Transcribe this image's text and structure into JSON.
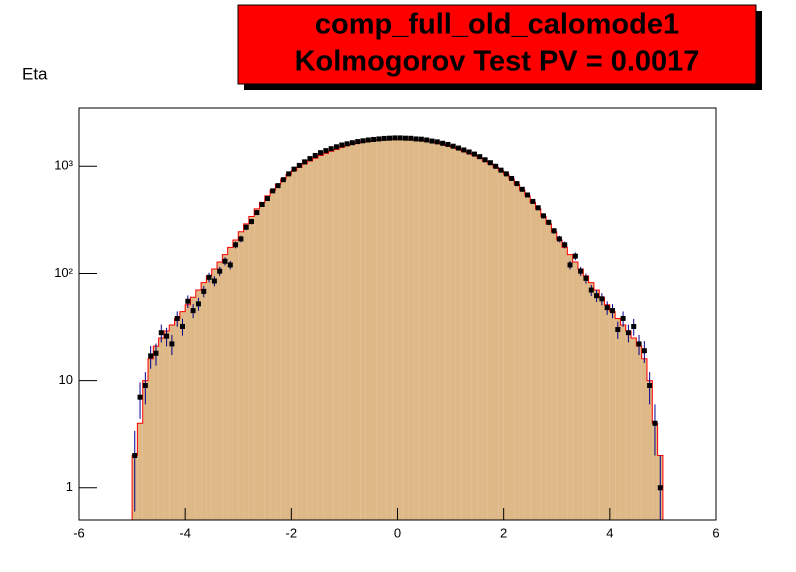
{
  "chart_data": {
    "type": "histogram",
    "title": "comp_full_old_calomode1",
    "subtitle": "Kolmogorov Test PV = 0.0017",
    "ylabel": "Eta",
    "log_y": true,
    "xlim": [
      -6,
      6
    ],
    "xticks": [
      -6,
      -4,
      -2,
      0,
      2,
      4,
      6
    ],
    "ylim": [
      0.5,
      3500
    ],
    "yticks": [
      1,
      10,
      {
        "value": 100,
        "label": "10²"
      },
      {
        "value": 1000,
        "label": "10³"
      }
    ],
    "bins": [
      -5,
      -4.9,
      -4.8,
      -4.7,
      -4.6,
      -4.5,
      -4.4,
      -4.3,
      -4.2,
      -4.1,
      -4,
      -3.9,
      -3.8,
      -3.7,
      -3.6,
      -3.5,
      -3.4,
      -3.3,
      -3.2,
      -3.1,
      -3,
      -2.9,
      -2.8,
      -2.7,
      -2.6,
      -2.5,
      -2.4,
      -2.3,
      -2.2,
      -2.1,
      -2,
      -1.9,
      -1.8,
      -1.7,
      -1.6,
      -1.5,
      -1.4,
      -1.3,
      -1.2,
      -1.1,
      -1,
      -0.9,
      -0.8,
      -0.7,
      -0.6,
      -0.5,
      -0.4,
      -0.3,
      -0.2,
      -0.1,
      0,
      0.1,
      0.2,
      0.3,
      0.4,
      0.5,
      0.6,
      0.7,
      0.8,
      0.9,
      1,
      1.1,
      1.2,
      1.3,
      1.4,
      1.5,
      1.6,
      1.7,
      1.8,
      1.9,
      2,
      2.1,
      2.2,
      2.3,
      2.4,
      2.5,
      2.6,
      2.7,
      2.8,
      2.9,
      3,
      3.1,
      3.2,
      3.3,
      3.4,
      3.5,
      3.6,
      3.7,
      3.8,
      3.9,
      4,
      4.1,
      4.2,
      4.3,
      4.4,
      4.5,
      4.6,
      4.7,
      4.8,
      4.9,
      5
    ],
    "series": [
      {
        "color": "#deb887",
        "edge_color": "#ff0000",
        "style": "filled",
        "values": [
          2,
          4,
          10,
          16,
          21,
          25,
          29,
          33,
          38,
          44,
          51,
          60,
          70,
          82,
          95,
          110,
          128,
          150,
          175,
          205,
          245,
          290,
          340,
          400,
          460,
          530,
          600,
          680,
          760,
          840,
          910,
          980,
          1050,
          1120,
          1190,
          1260,
          1320,
          1380,
          1440,
          1500,
          1560,
          1610,
          1655,
          1695,
          1725,
          1750,
          1770,
          1785,
          1795,
          1800,
          1800,
          1795,
          1785,
          1770,
          1750,
          1725,
          1695,
          1655,
          1610,
          1560,
          1500,
          1440,
          1380,
          1320,
          1260,
          1190,
          1120,
          1050,
          980,
          910,
          840,
          760,
          680,
          600,
          530,
          460,
          400,
          340,
          290,
          245,
          205,
          175,
          150,
          128,
          110,
          95,
          82,
          70,
          60,
          51,
          44,
          38,
          33,
          29,
          25,
          21,
          16,
          10,
          4,
          2
        ]
      },
      {
        "color": "#000000",
        "error_color": "#00008b",
        "style": "points",
        "values": [
          2,
          7,
          9,
          17,
          18,
          28,
          26,
          22,
          38,
          32,
          55,
          45,
          52,
          68,
          92,
          85,
          105,
          130,
          120,
          185,
          210,
          270,
          305,
          370,
          440,
          500,
          590,
          660,
          750,
          850,
          940,
          1020,
          1100,
          1180,
          1260,
          1340,
          1400,
          1460,
          1520,
          1580,
          1620,
          1660,
          1700,
          1730,
          1760,
          1780,
          1800,
          1820,
          1830,
          1840,
          1840,
          1830,
          1825,
          1800,
          1790,
          1760,
          1720,
          1690,
          1640,
          1600,
          1540,
          1480,
          1420,
          1360,
          1300,
          1230,
          1150,
          1080,
          1000,
          920,
          850,
          770,
          690,
          610,
          540,
          470,
          410,
          345,
          300,
          250,
          210,
          185,
          120,
          145,
          105,
          90,
          70,
          62,
          58,
          48,
          45,
          30,
          38,
          28,
          32,
          22,
          19,
          9,
          4,
          1
        ],
        "errors": [
          1.4,
          2.6,
          3,
          4.1,
          4.2,
          5.3,
          5.1,
          4.7,
          6.2,
          5.7,
          7.4,
          6.7,
          7.2,
          8.2,
          9.6,
          9.2,
          10.2,
          11.4,
          11,
          13.6,
          14.5,
          16.4,
          17.5,
          19.2,
          21,
          22.4,
          24.3,
          25.7,
          27.4,
          29.2,
          30.7,
          31.9,
          33.2,
          34.4,
          35.5,
          36.6,
          37.4,
          38.2,
          39,
          39.7,
          40.2,
          40.7,
          41.2,
          41.6,
          42,
          42.2,
          42.4,
          42.7,
          42.8,
          42.9,
          42.9,
          42.8,
          42.7,
          42.4,
          42.3,
          42,
          41.5,
          41.1,
          40.5,
          40,
          39.2,
          38.5,
          37.7,
          36.9,
          36.1,
          35.1,
          33.9,
          32.9,
          31.6,
          30.3,
          29.2,
          27.7,
          26.3,
          24.7,
          23.2,
          21.7,
          20.2,
          18.6,
          17.3,
          15.8,
          14.5,
          13.6,
          11,
          12,
          10.2,
          9.5,
          8.4,
          7.9,
          7.6,
          6.9,
          6.7,
          5.5,
          6.2,
          5.3,
          5.7,
          4.7,
          4.4,
          3,
          2,
          1
        ]
      }
    ]
  }
}
